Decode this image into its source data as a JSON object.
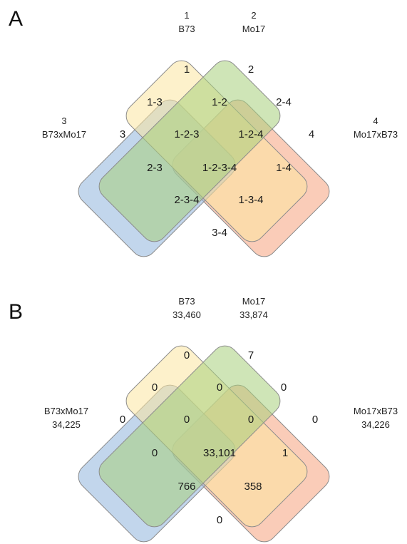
{
  "panels": [
    {
      "letter": "A",
      "sets": [
        {
          "line1": "1",
          "line2": "B73",
          "color": "#a8cf7c"
        },
        {
          "line1": "2",
          "line2": "Mo17",
          "color": "#fbe6a0"
        },
        {
          "line1": "3",
          "line2": "B73xMo17",
          "color": "#8fb4dd"
        },
        {
          "line1": "4",
          "line2": "Mo17xB73",
          "color": "#f6a27e"
        }
      ],
      "regions": {
        "r1": "1",
        "r2": "2",
        "r3": "3",
        "r4": "4",
        "r13": "1-3",
        "r12": "1-2",
        "r24": "2-4",
        "r123": "1-2-3",
        "r124": "1-2-4",
        "r23": "2-3",
        "r1234": "1-2-3-4",
        "r14": "1-4",
        "r234": "2-3-4",
        "r134": "1-3-4",
        "r34": "3-4"
      }
    },
    {
      "letter": "B",
      "sets": [
        {
          "line1": "B73",
          "line2": "33,460",
          "color": "#a8cf7c"
        },
        {
          "line1": "Mo17",
          "line2": "33,874",
          "color": "#fbe6a0"
        },
        {
          "line1": "B73xMo17",
          "line2": "34,225",
          "color": "#8fb4dd"
        },
        {
          "line1": "Mo17xB73",
          "line2": "34,226",
          "color": "#f6a27e"
        }
      ],
      "regions": {
        "r1": "0",
        "r2": "7",
        "r3": "0",
        "r4": "0",
        "r13": "0",
        "r12": "0",
        "r24": "0",
        "r123": "0",
        "r124": "0",
        "r23": "0",
        "r1234": "33,101",
        "r14": "1",
        "r234": "766",
        "r134": "358",
        "r34": "0"
      }
    }
  ]
}
